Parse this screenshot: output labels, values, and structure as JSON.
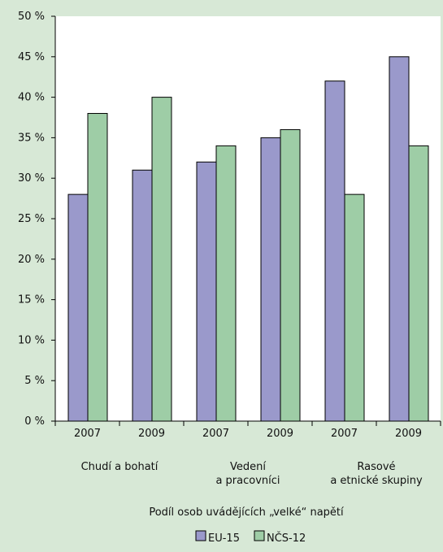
{
  "chart_data": {
    "type": "bar",
    "ylim": [
      0,
      50
    ],
    "yticks": [
      "0 %",
      "5 %",
      "10 %",
      "15 %",
      "20 %",
      "25 %",
      "30 %",
      "35 %",
      "40 %",
      "45 %",
      "50 %"
    ],
    "grid": false,
    "legend_position": "bottom",
    "xlabel": "Podíl osob uvádějících „velké“ napětí",
    "categories": [
      "2007",
      "2009",
      "2007",
      "2009",
      "2007",
      "2009"
    ],
    "groups": [
      {
        "label_lines": [
          "Chudí a bohatí"
        ]
      },
      {
        "label_lines": [
          "Vedení",
          "a pracovníci"
        ]
      },
      {
        "label_lines": [
          "Rasové",
          "a etnické skupiny"
        ]
      }
    ],
    "series": [
      {
        "name": "EU-15",
        "color": "#9a99cb",
        "values": [
          28,
          31,
          32,
          35,
          42,
          45
        ]
      },
      {
        "name": "NČS-12",
        "color": "#9ecda6",
        "values": [
          38,
          40,
          34,
          36,
          28,
          34
        ]
      }
    ]
  }
}
